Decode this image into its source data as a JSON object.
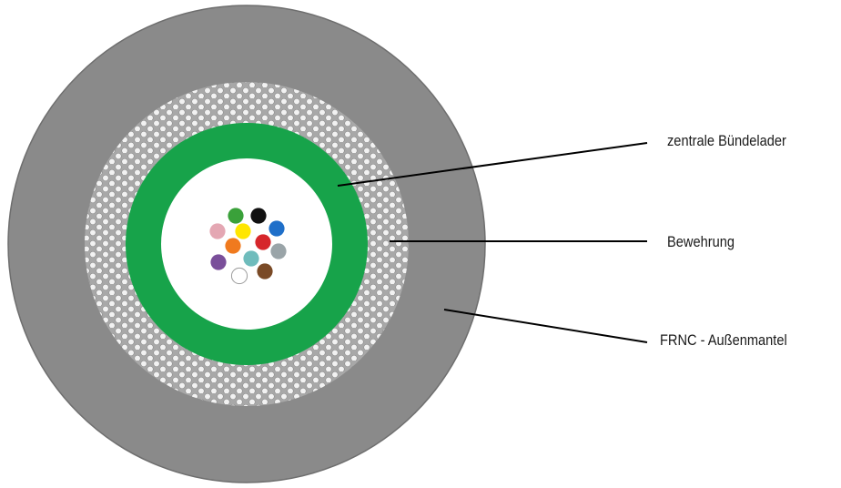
{
  "labels": {
    "central_tube": "zentrale Bündelader",
    "armor": "Bewehrung",
    "outer_sheath": "FRNC - Außenmantel"
  },
  "colors": {
    "sheath": "#8a8a8a",
    "sheath_edge": "#6e6e6e",
    "armor_base": "#a8a8a8",
    "armor_bead": "#f4f4f4",
    "tube": "#17a34a",
    "core": "#ffffff",
    "leader_line": "#000000"
  },
  "fibers": [
    {
      "name": "green",
      "color": "#3aa13a"
    },
    {
      "name": "black",
      "color": "#111111"
    },
    {
      "name": "pink",
      "color": "#e4a7b3"
    },
    {
      "name": "yellow",
      "color": "#ffe600"
    },
    {
      "name": "blue",
      "color": "#1f6fc9"
    },
    {
      "name": "orange",
      "color": "#f07a1e"
    },
    {
      "name": "turquoise",
      "color": "#6fbcbc"
    },
    {
      "name": "red",
      "color": "#d6262b"
    },
    {
      "name": "grey",
      "color": "#9aa4a8"
    },
    {
      "name": "violet",
      "color": "#7a4f9a"
    },
    {
      "name": "white",
      "color": "#ffffff"
    },
    {
      "name": "brown",
      "color": "#7a4a26"
    }
  ]
}
